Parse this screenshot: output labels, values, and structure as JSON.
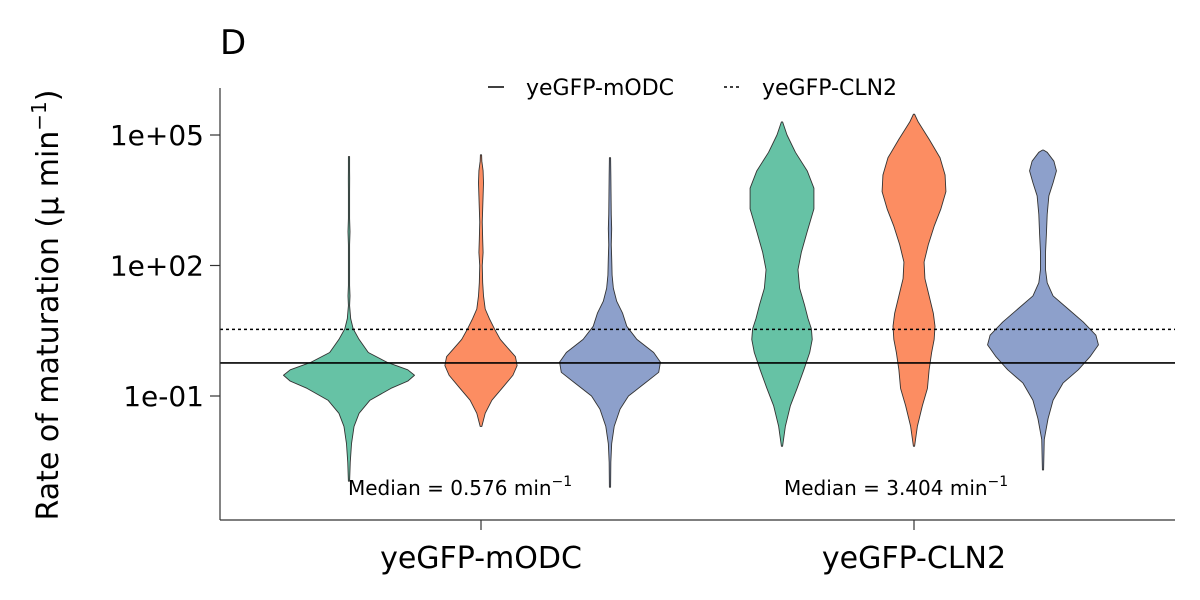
{
  "chart_data": {
    "type": "violin",
    "panel_label": "D",
    "ylabel": "Rate of maturation (μ min",
    "ylabel_superscript": "−1",
    "ylabel_suffix": ")",
    "y_scale": "log10",
    "ylim": [
      0.0004,
      3000000
    ],
    "y_ticks": [
      {
        "value": 0.1,
        "label": "1e-01"
      },
      {
        "value": 100,
        "label": "1e+02"
      },
      {
        "value": 100000,
        "label": "1e+05"
      }
    ],
    "categories": [
      "yeGFP-mODC",
      "yeGFP-CLN2"
    ],
    "grid": false,
    "legend_position": "top",
    "legend": [
      {
        "label": "yeGFP-mODC",
        "line_style": "solid"
      },
      {
        "label": "yeGFP-CLN2",
        "line_style": "dotted"
      }
    ],
    "reference_lines": [
      {
        "series": "yeGFP-mODC",
        "value": 0.576,
        "line_style": "solid"
      },
      {
        "series": "yeGFP-CLN2",
        "value": 3.404,
        "line_style": "dotted"
      }
    ],
    "annotations": [
      {
        "category": "yeGFP-mODC",
        "text": "Median = 0.576 min",
        "superscript": "−1"
      },
      {
        "category": "yeGFP-CLN2",
        "text": "Median = 3.404 min",
        "superscript": "−1"
      }
    ],
    "colors": [
      "#66c2a5",
      "#fc8d62",
      "#8da0cb"
    ],
    "violins": [
      {
        "category": "yeGFP-mODC",
        "replicate": 1,
        "color": "#66c2a5",
        "min": 0.0011,
        "max": 32000,
        "median": 0.35,
        "profile": [
          [
            0.0011,
            0.05
          ],
          [
            0.003,
            0.15
          ],
          [
            0.008,
            0.3
          ],
          [
            0.02,
            0.6
          ],
          [
            0.04,
            1.2
          ],
          [
            0.08,
            2.5
          ],
          [
            0.15,
            5
          ],
          [
            0.22,
            7
          ],
          [
            0.3,
            7.8
          ],
          [
            0.4,
            7
          ],
          [
            0.6,
            4.5
          ],
          [
            1,
            2.3
          ],
          [
            2,
            1.2
          ],
          [
            3.5,
            0.5
          ],
          [
            6,
            0.2
          ],
          [
            12,
            0.05
          ],
          [
            20,
            0.12
          ],
          [
            35,
            0.05
          ],
          [
            100,
            0.03
          ],
          [
            300,
            0.05
          ],
          [
            600,
            0.12
          ],
          [
            1200,
            0.05
          ],
          [
            5000,
            0.03
          ],
          [
            10000,
            0.08
          ],
          [
            15000,
            0.06
          ],
          [
            32000,
            0.05
          ]
        ]
      },
      {
        "category": "yeGFP-mODC",
        "replicate": 2,
        "color": "#fc8d62",
        "min": 0.02,
        "max": 35000,
        "median": 0.7,
        "profile": [
          [
            0.02,
            0.1
          ],
          [
            0.04,
            0.5
          ],
          [
            0.08,
            1.3
          ],
          [
            0.15,
            2.5
          ],
          [
            0.3,
            3.8
          ],
          [
            0.5,
            4.3
          ],
          [
            0.8,
            4.1
          ],
          [
            1.2,
            3.3
          ],
          [
            2,
            2.3
          ],
          [
            3.5,
            1.6
          ],
          [
            6,
            1.0
          ],
          [
            10,
            0.5
          ],
          [
            20,
            0.3
          ],
          [
            40,
            0.2
          ],
          [
            100,
            0.15
          ],
          [
            200,
            0.25
          ],
          [
            400,
            0.2
          ],
          [
            1000,
            0.15
          ],
          [
            2000,
            0.2
          ],
          [
            4000,
            0.25
          ],
          [
            8000,
            0.3
          ],
          [
            15000,
            0.25
          ],
          [
            25000,
            0.1
          ],
          [
            35000,
            0.05
          ]
        ]
      },
      {
        "category": "yeGFP-mODC",
        "replicate": 3,
        "color": "#8da0cb",
        "min": 0.0008,
        "max": 30000,
        "median": 0.6,
        "profile": [
          [
            0.0008,
            0.05
          ],
          [
            0.003,
            0.1
          ],
          [
            0.008,
            0.2
          ],
          [
            0.02,
            0.5
          ],
          [
            0.05,
            1.2
          ],
          [
            0.1,
            2.2
          ],
          [
            0.2,
            4.2
          ],
          [
            0.35,
            5.8
          ],
          [
            0.6,
            6.0
          ],
          [
            1,
            5.2
          ],
          [
            2,
            3.2
          ],
          [
            4,
            2.0
          ],
          [
            8,
            1.5
          ],
          [
            15,
            0.8
          ],
          [
            30,
            0.4
          ],
          [
            60,
            0.25
          ],
          [
            150,
            0.2
          ],
          [
            300,
            0.15
          ],
          [
            700,
            0.2
          ],
          [
            1500,
            0.15
          ],
          [
            5000,
            0.12
          ],
          [
            12000,
            0.1
          ],
          [
            30000,
            0.05
          ]
        ]
      },
      {
        "category": "yeGFP-CLN2",
        "replicate": 1,
        "color": "#66c2a5",
        "min": 0.007,
        "max": 200000,
        "median": 3.4,
        "profile": [
          [
            0.007,
            0.05
          ],
          [
            0.02,
            0.4
          ],
          [
            0.06,
            1.0
          ],
          [
            0.15,
            1.8
          ],
          [
            0.4,
            2.6
          ],
          [
            1,
            3.3
          ],
          [
            2,
            3.6
          ],
          [
            3.5,
            3.5
          ],
          [
            6,
            3.1
          ],
          [
            12,
            2.7
          ],
          [
            30,
            2.1
          ],
          [
            80,
            1.9
          ],
          [
            200,
            2.3
          ],
          [
            600,
            3.0
          ],
          [
            2000,
            3.8
          ],
          [
            6000,
            3.8
          ],
          [
            15000,
            3.0
          ],
          [
            40000,
            1.6
          ],
          [
            100000,
            0.6
          ],
          [
            200000,
            0.05
          ]
        ]
      },
      {
        "category": "yeGFP-CLN2",
        "replicate": 2,
        "color": "#fc8d62",
        "min": 0.007,
        "max": 300000,
        "median": 4,
        "profile": [
          [
            0.007,
            0.05
          ],
          [
            0.02,
            0.4
          ],
          [
            0.06,
            1.0
          ],
          [
            0.15,
            1.6
          ],
          [
            0.4,
            1.8
          ],
          [
            1,
            2.1
          ],
          [
            2,
            2.4
          ],
          [
            4,
            2.5
          ],
          [
            8,
            2.3
          ],
          [
            20,
            1.8
          ],
          [
            50,
            1.3
          ],
          [
            120,
            1.2
          ],
          [
            300,
            1.7
          ],
          [
            800,
            2.4
          ],
          [
            2000,
            3.2
          ],
          [
            5000,
            3.8
          ],
          [
            12000,
            3.7
          ],
          [
            30000,
            3.1
          ],
          [
            80000,
            1.8
          ],
          [
            200000,
            0.5
          ],
          [
            300000,
            0.05
          ]
        ]
      },
      {
        "category": "yeGFP-CLN2",
        "replicate": 3,
        "color": "#8da0cb",
        "min": 0.002,
        "max": 45000,
        "median": 1.2,
        "profile": [
          [
            0.002,
            0.05
          ],
          [
            0.01,
            0.15
          ],
          [
            0.03,
            0.6
          ],
          [
            0.08,
            1.2
          ],
          [
            0.2,
            2.4
          ],
          [
            0.4,
            4.2
          ],
          [
            0.8,
            5.6
          ],
          [
            1.5,
            6.6
          ],
          [
            2.5,
            6.3
          ],
          [
            5,
            4.8
          ],
          [
            10,
            3.0
          ],
          [
            20,
            1.2
          ],
          [
            40,
            0.5
          ],
          [
            80,
            0.3
          ],
          [
            200,
            0.3
          ],
          [
            500,
            0.4
          ],
          [
            1500,
            0.5
          ],
          [
            4000,
            0.7
          ],
          [
            8000,
            1.2
          ],
          [
            15000,
            1.6
          ],
          [
            25000,
            1.3
          ],
          [
            40000,
            0.5
          ],
          [
            45000,
            0.05
          ]
        ]
      }
    ]
  }
}
